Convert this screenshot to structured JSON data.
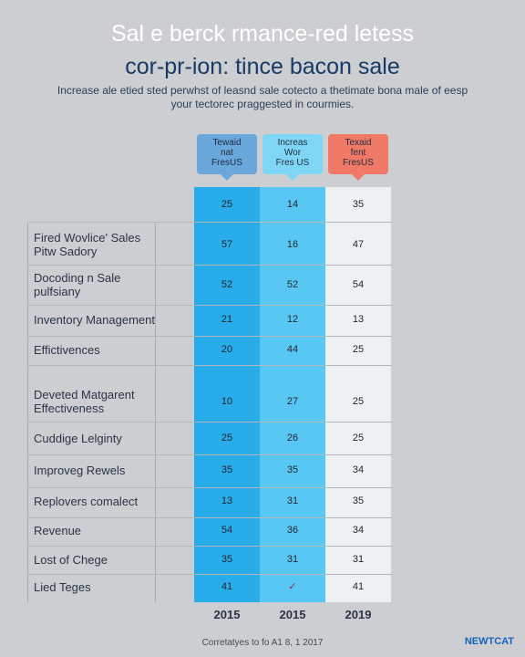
{
  "header": {
    "title_line1": "Sal e berck rmance-red letess",
    "title_line2": "cor-pr-ion: tince bacon sale",
    "subtitle": "Increase ale etied sted perwhst of leasnd sale cotecto a thetimate bona male of eesp your tectorec praggested in courmies."
  },
  "colors": {
    "col1": "#29acea",
    "col2": "#58c7f4",
    "col3": "#eef1f4",
    "tag1": "#6aa7da",
    "tag2": "#7fd6f4",
    "tag3": "#f07a67"
  },
  "chart_data": {
    "type": "table",
    "column_headers": [
      [
        "Tewaid",
        "nat",
        "FresUS"
      ],
      [
        "Increas",
        "Wor",
        "Fres US"
      ],
      [
        "Texaid",
        "fent",
        "FresUS"
      ]
    ],
    "rows": [
      {
        "label": [
          "",
          ""
        ],
        "values": [
          "25",
          "14",
          "35"
        ]
      },
      {
        "label": [
          "Fired Wovlice' Sales",
          "Pitw Sadory"
        ],
        "values": [
          "57",
          "16",
          "47"
        ]
      },
      {
        "label": [
          "Docoding n Sale",
          "pulfsiany"
        ],
        "values": [
          "52",
          "52",
          "54"
        ]
      },
      {
        "label": [
          "Inventory Management",
          ""
        ],
        "values": [
          "21",
          "12",
          "13"
        ]
      },
      {
        "label": [
          "Effictivences",
          ""
        ],
        "values": [
          "20",
          "44",
          "25"
        ]
      },
      {
        "label": [
          "Deveted Matgarent",
          "Effectiveness"
        ],
        "values": [
          "10",
          "27",
          "25"
        ]
      },
      {
        "label": [
          "Cuddige Lelginty",
          ""
        ],
        "values": [
          "25",
          "26",
          "25"
        ]
      },
      {
        "label": [
          "Improveg Rewels",
          ""
        ],
        "values": [
          "35",
          "35",
          "34"
        ]
      },
      {
        "label": [
          "Replovers comalect",
          ""
        ],
        "values": [
          "13",
          "31",
          "35"
        ]
      },
      {
        "label": [
          "Revenue",
          ""
        ],
        "values": [
          "54",
          "36",
          "34"
        ]
      },
      {
        "label": [
          "Lost of Chege",
          ""
        ],
        "values": [
          "35",
          "31",
          "31"
        ]
      },
      {
        "label": [
          "Lied Teges",
          ""
        ],
        "values": [
          "41",
          "✓",
          "41"
        ]
      }
    ],
    "years": [
      "2015",
      "2015",
      "2019"
    ]
  },
  "footer": {
    "note": "Corretatyes to fo A1 8, 1 2017",
    "logo": "NEWTCAT"
  }
}
